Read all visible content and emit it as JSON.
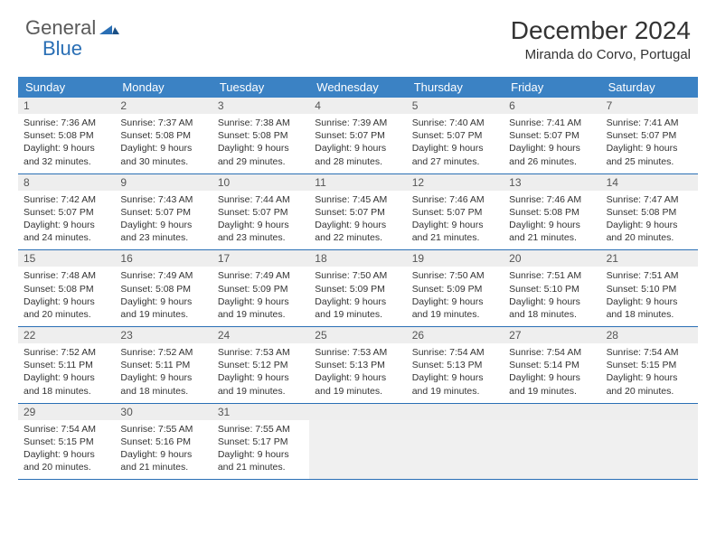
{
  "brand": {
    "part1": "General",
    "part2": "Blue"
  },
  "title": "December 2024",
  "location": "Miranda do Corvo, Portugal",
  "colors": {
    "header_bg": "#3b82c4",
    "header_text": "#ffffff",
    "daynum_bg": "#eeeeee",
    "week_border": "#2a6fb5",
    "text": "#333333",
    "logo_gray": "#5a5a5a",
    "logo_blue": "#2a6fb5",
    "empty_bg": "#f0f0f0"
  },
  "day_names": [
    "Sunday",
    "Monday",
    "Tuesday",
    "Wednesday",
    "Thursday",
    "Friday",
    "Saturday"
  ],
  "weeks": [
    [
      {
        "n": "1",
        "sr": "7:36 AM",
        "ss": "5:08 PM",
        "dl": "9 hours and 32 minutes."
      },
      {
        "n": "2",
        "sr": "7:37 AM",
        "ss": "5:08 PM",
        "dl": "9 hours and 30 minutes."
      },
      {
        "n": "3",
        "sr": "7:38 AM",
        "ss": "5:08 PM",
        "dl": "9 hours and 29 minutes."
      },
      {
        "n": "4",
        "sr": "7:39 AM",
        "ss": "5:07 PM",
        "dl": "9 hours and 28 minutes."
      },
      {
        "n": "5",
        "sr": "7:40 AM",
        "ss": "5:07 PM",
        "dl": "9 hours and 27 minutes."
      },
      {
        "n": "6",
        "sr": "7:41 AM",
        "ss": "5:07 PM",
        "dl": "9 hours and 26 minutes."
      },
      {
        "n": "7",
        "sr": "7:41 AM",
        "ss": "5:07 PM",
        "dl": "9 hours and 25 minutes."
      }
    ],
    [
      {
        "n": "8",
        "sr": "7:42 AM",
        "ss": "5:07 PM",
        "dl": "9 hours and 24 minutes."
      },
      {
        "n": "9",
        "sr": "7:43 AM",
        "ss": "5:07 PM",
        "dl": "9 hours and 23 minutes."
      },
      {
        "n": "10",
        "sr": "7:44 AM",
        "ss": "5:07 PM",
        "dl": "9 hours and 23 minutes."
      },
      {
        "n": "11",
        "sr": "7:45 AM",
        "ss": "5:07 PM",
        "dl": "9 hours and 22 minutes."
      },
      {
        "n": "12",
        "sr": "7:46 AM",
        "ss": "5:07 PM",
        "dl": "9 hours and 21 minutes."
      },
      {
        "n": "13",
        "sr": "7:46 AM",
        "ss": "5:08 PM",
        "dl": "9 hours and 21 minutes."
      },
      {
        "n": "14",
        "sr": "7:47 AM",
        "ss": "5:08 PM",
        "dl": "9 hours and 20 minutes."
      }
    ],
    [
      {
        "n": "15",
        "sr": "7:48 AM",
        "ss": "5:08 PM",
        "dl": "9 hours and 20 minutes."
      },
      {
        "n": "16",
        "sr": "7:49 AM",
        "ss": "5:08 PM",
        "dl": "9 hours and 19 minutes."
      },
      {
        "n": "17",
        "sr": "7:49 AM",
        "ss": "5:09 PM",
        "dl": "9 hours and 19 minutes."
      },
      {
        "n": "18",
        "sr": "7:50 AM",
        "ss": "5:09 PM",
        "dl": "9 hours and 19 minutes."
      },
      {
        "n": "19",
        "sr": "7:50 AM",
        "ss": "5:09 PM",
        "dl": "9 hours and 19 minutes."
      },
      {
        "n": "20",
        "sr": "7:51 AM",
        "ss": "5:10 PM",
        "dl": "9 hours and 18 minutes."
      },
      {
        "n": "21",
        "sr": "7:51 AM",
        "ss": "5:10 PM",
        "dl": "9 hours and 18 minutes."
      }
    ],
    [
      {
        "n": "22",
        "sr": "7:52 AM",
        "ss": "5:11 PM",
        "dl": "9 hours and 18 minutes."
      },
      {
        "n": "23",
        "sr": "7:52 AM",
        "ss": "5:11 PM",
        "dl": "9 hours and 18 minutes."
      },
      {
        "n": "24",
        "sr": "7:53 AM",
        "ss": "5:12 PM",
        "dl": "9 hours and 19 minutes."
      },
      {
        "n": "25",
        "sr": "7:53 AM",
        "ss": "5:13 PM",
        "dl": "9 hours and 19 minutes."
      },
      {
        "n": "26",
        "sr": "7:54 AM",
        "ss": "5:13 PM",
        "dl": "9 hours and 19 minutes."
      },
      {
        "n": "27",
        "sr": "7:54 AM",
        "ss": "5:14 PM",
        "dl": "9 hours and 19 minutes."
      },
      {
        "n": "28",
        "sr": "7:54 AM",
        "ss": "5:15 PM",
        "dl": "9 hours and 20 minutes."
      }
    ],
    [
      {
        "n": "29",
        "sr": "7:54 AM",
        "ss": "5:15 PM",
        "dl": "9 hours and 20 minutes."
      },
      {
        "n": "30",
        "sr": "7:55 AM",
        "ss": "5:16 PM",
        "dl": "9 hours and 21 minutes."
      },
      {
        "n": "31",
        "sr": "7:55 AM",
        "ss": "5:17 PM",
        "dl": "9 hours and 21 minutes."
      },
      null,
      null,
      null,
      null
    ]
  ],
  "labels": {
    "sunrise": "Sunrise:",
    "sunset": "Sunset:",
    "daylight": "Daylight:"
  }
}
